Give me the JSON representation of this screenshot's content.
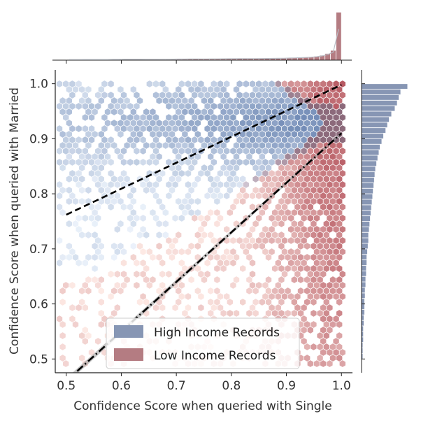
{
  "chart_data": {
    "type": "scatter",
    "subtype": "joint-hexbin-with-marginal-histograms",
    "xlabel": "Confidence Score when queried with Single",
    "ylabel": "Confidence Score when queried with Married",
    "xlim": [
      0.48,
      1.02
    ],
    "ylim": [
      0.475,
      1.025
    ],
    "xticks": [
      0.5,
      0.6,
      0.7,
      0.8,
      0.9,
      1.0
    ],
    "xtick_labels": [
      "0.5",
      "0.6",
      "0.7",
      "0.8",
      "0.9",
      "1.0"
    ],
    "yticks": [
      0.5,
      0.6,
      0.7,
      0.8,
      0.9,
      1.0
    ],
    "ytick_labels": [
      "0.5",
      "0.6",
      "0.7",
      "0.8",
      "0.9",
      "1.0"
    ],
    "legend": {
      "location": "lower center",
      "entries": [
        {
          "label": "High Income Records",
          "color": "#8796b4"
        },
        {
          "label": "Low Income Records",
          "color": "#b47c82"
        }
      ]
    },
    "series": [
      {
        "name": "High Income Records",
        "colormap": "Blues",
        "color": "#8796b4",
        "density_peak": [
          0.97,
          0.96
        ],
        "regression_line": {
          "style": "dashed",
          "points": [
            [
              0.5,
              0.762
            ],
            [
              1.0,
              0.998
            ]
          ]
        },
        "marginal_histogram_y": {
          "bins": [
            0.5,
            0.51,
            0.52,
            0.53,
            0.54,
            0.55,
            0.56,
            0.57,
            0.58,
            0.59,
            0.6,
            0.61,
            0.62,
            0.63,
            0.64,
            0.65,
            0.66,
            0.67,
            0.68,
            0.69,
            0.7,
            0.71,
            0.72,
            0.73,
            0.74,
            0.75,
            0.76,
            0.77,
            0.78,
            0.79,
            0.8,
            0.81,
            0.82,
            0.83,
            0.84,
            0.85,
            0.86,
            0.87,
            0.88,
            0.89,
            0.9,
            0.91,
            0.92,
            0.93,
            0.94,
            0.95,
            0.96,
            0.97,
            0.98,
            0.99
          ],
          "heights": [
            0.02,
            0.02,
            0.02,
            0.03,
            0.03,
            0.03,
            0.04,
            0.04,
            0.05,
            0.05,
            0.05,
            0.06,
            0.06,
            0.07,
            0.07,
            0.08,
            0.08,
            0.09,
            0.09,
            0.1,
            0.11,
            0.12,
            0.12,
            0.13,
            0.14,
            0.15,
            0.16,
            0.17,
            0.18,
            0.19,
            0.2,
            0.21,
            0.22,
            0.23,
            0.24,
            0.26,
            0.28,
            0.3,
            0.32,
            0.35,
            0.38,
            0.42,
            0.45,
            0.48,
            0.52,
            0.58,
            0.62,
            0.65,
            0.68,
            0.8
          ]
        }
      },
      {
        "name": "Low Income Records",
        "colormap": "Reds",
        "color": "#b47c82",
        "density_peak": [
          0.99,
          0.97
        ],
        "regression_line": {
          "style": "dashdot",
          "points": [
            [
              0.5,
              0.46
            ],
            [
              1.0,
              0.91
            ]
          ]
        },
        "marginal_histogram_x": {
          "bins": [
            0.5,
            0.51,
            0.52,
            0.53,
            0.54,
            0.55,
            0.56,
            0.57,
            0.58,
            0.59,
            0.6,
            0.61,
            0.62,
            0.63,
            0.64,
            0.65,
            0.66,
            0.67,
            0.68,
            0.69,
            0.7,
            0.71,
            0.72,
            0.73,
            0.74,
            0.75,
            0.76,
            0.77,
            0.78,
            0.79,
            0.8,
            0.81,
            0.82,
            0.83,
            0.84,
            0.85,
            0.86,
            0.87,
            0.88,
            0.89,
            0.9,
            0.91,
            0.92,
            0.93,
            0.94,
            0.95,
            0.96,
            0.97,
            0.98,
            0.99
          ],
          "heights": [
            0.002,
            0.002,
            0.002,
            0.003,
            0.003,
            0.003,
            0.004,
            0.004,
            0.005,
            0.005,
            0.006,
            0.006,
            0.007,
            0.007,
            0.008,
            0.009,
            0.009,
            0.01,
            0.011,
            0.012,
            0.013,
            0.014,
            0.015,
            0.016,
            0.017,
            0.018,
            0.019,
            0.02,
            0.021,
            0.022,
            0.023,
            0.024,
            0.025,
            0.026,
            0.027,
            0.028,
            0.03,
            0.032,
            0.034,
            0.036,
            0.04,
            0.045,
            0.05,
            0.055,
            0.062,
            0.075,
            0.095,
            0.13,
            0.19,
            0.95
          ]
        }
      }
    ]
  }
}
